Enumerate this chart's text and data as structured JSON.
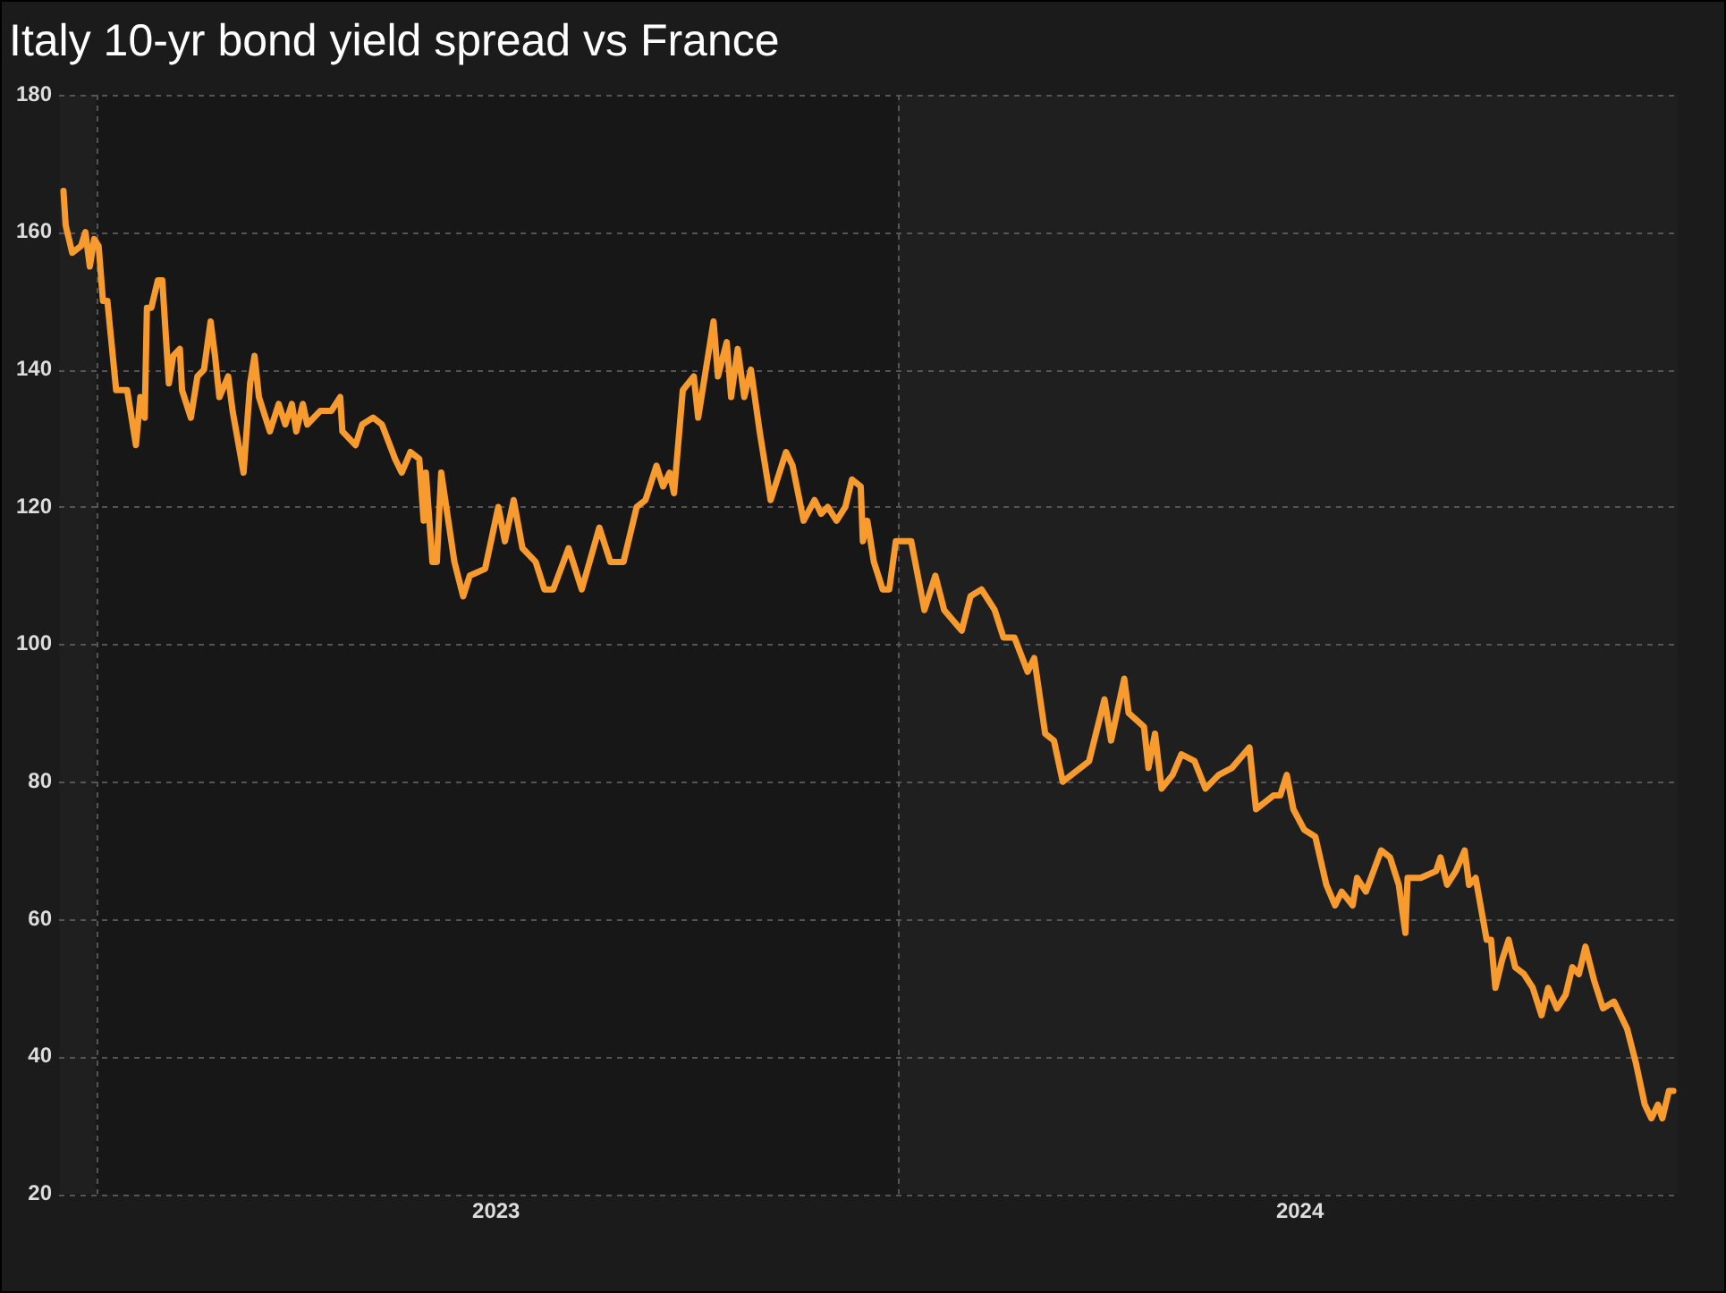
{
  "chart_data": {
    "type": "line",
    "title": "Italy 10-yr bond yield spread vs France",
    "x": [
      "2022-12-17",
      "2022-12-18",
      "2022-12-21",
      "2022-12-25",
      "2022-12-27",
      "2022-12-29",
      "2022-12-31",
      "2023-01-02",
      "2023-01-04",
      "2023-01-06",
      "2023-01-10",
      "2023-01-13",
      "2023-01-15",
      "2023-01-19",
      "2023-01-21",
      "2023-01-23",
      "2023-01-24",
      "2023-01-26",
      "2023-01-29",
      "2023-01-31",
      "2023-02-03",
      "2023-02-05",
      "2023-02-08",
      "2023-02-09",
      "2023-02-13",
      "2023-02-16",
      "2023-02-19",
      "2023-02-22",
      "2023-02-24",
      "2023-02-26",
      "2023-03-02",
      "2023-03-04",
      "2023-03-09",
      "2023-03-12",
      "2023-03-14",
      "2023-03-16",
      "2023-03-21",
      "2023-03-25",
      "2023-03-28",
      "2023-03-31",
      "2023-04-02",
      "2023-04-05",
      "2023-04-07",
      "2023-04-13",
      "2023-04-18",
      "2023-04-22",
      "2023-04-23",
      "2023-04-29",
      "2023-05-02",
      "2023-05-07",
      "2023-05-11",
      "2023-05-17",
      "2023-05-20",
      "2023-05-24",
      "2023-05-28",
      "2023-05-30",
      "2023-05-31",
      "2023-06-03",
      "2023-06-05",
      "2023-06-07",
      "2023-06-13",
      "2023-06-17",
      "2023-06-20",
      "2023-06-27",
      "2023-07-03",
      "2023-07-06",
      "2023-07-10",
      "2023-07-14",
      "2023-07-20",
      "2023-07-24",
      "2023-07-28",
      "2023-08-04",
      "2023-08-10",
      "2023-08-18",
      "2023-08-23",
      "2023-08-29",
      "2023-09-04",
      "2023-09-08",
      "2023-09-13",
      "2023-09-16",
      "2023-09-19",
      "2023-09-21",
      "2023-09-25",
      "2023-09-30",
      "2023-10-02",
      "2023-10-05",
      "2023-10-09",
      "2023-10-11",
      "2023-10-15",
      "2023-10-17",
      "2023-10-20",
      "2023-10-23",
      "2023-10-26",
      "2023-10-30",
      "2023-11-04",
      "2023-11-07",
      "2023-11-11",
      "2023-11-14",
      "2023-11-19",
      "2023-11-24",
      "2023-11-27",
      "2023-11-30",
      "2023-12-04",
      "2023-12-08",
      "2023-12-11",
      "2023-12-15",
      "2023-12-16",
      "2023-12-18",
      "2023-12-21",
      "2023-12-25",
      "2023-12-28",
      "2023-12-31",
      "2024-01-04",
      "2024-01-07",
      "2024-01-13",
      "2024-01-18",
      "2024-01-22",
      "2024-01-30",
      "2024-02-03",
      "2024-02-08",
      "2024-02-14",
      "2024-02-18",
      "2024-02-23",
      "2024-02-29",
      "2024-03-03",
      "2024-03-08",
      "2024-03-12",
      "2024-03-16",
      "2024-03-20",
      "2024-03-28",
      "2024-04-04",
      "2024-04-07",
      "2024-04-13",
      "2024-04-15",
      "2024-04-22",
      "2024-04-24",
      "2024-04-27",
      "2024-04-30",
      "2024-05-05",
      "2024-05-09",
      "2024-05-15",
      "2024-05-20",
      "2024-05-26",
      "2024-06-01",
      "2024-06-09",
      "2024-06-12",
      "2024-06-16",
      "2024-06-20",
      "2024-06-23",
      "2024-06-26",
      "2024-06-29",
      "2024-07-04",
      "2024-07-09",
      "2024-07-14",
      "2024-07-18",
      "2024-07-21",
      "2024-07-26",
      "2024-07-28",
      "2024-08-01",
      "2024-08-08",
      "2024-08-12",
      "2024-08-16",
      "2024-08-19",
      "2024-08-20",
      "2024-08-26",
      "2024-09-02",
      "2024-09-04",
      "2024-09-07",
      "2024-09-11",
      "2024-09-15",
      "2024-09-17",
      "2024-09-20",
      "2024-09-25",
      "2024-09-27",
      "2024-09-29",
      "2024-10-02",
      "2024-10-05",
      "2024-10-08",
      "2024-10-12",
      "2024-10-16",
      "2024-10-20",
      "2024-10-23",
      "2024-10-27",
      "2024-10-31",
      "2024-11-03",
      "2024-11-06",
      "2024-11-09",
      "2024-11-13",
      "2024-11-17",
      "2024-11-22",
      "2024-11-28",
      "2024-12-02",
      "2024-12-06",
      "2024-12-09",
      "2024-12-12",
      "2024-12-14",
      "2024-12-17",
      "2024-12-19"
    ],
    "series": [
      {
        "color": "#f89b2e",
        "values": [
          166,
          161,
          157,
          158,
          160,
          155,
          159,
          158,
          150,
          150,
          137,
          137,
          137,
          129,
          136,
          133,
          149,
          149,
          153,
          153,
          138,
          142,
          143,
          137,
          133,
          139,
          140,
          147,
          142,
          136,
          139,
          134,
          125,
          138,
          142,
          136,
          131,
          135,
          132,
          135,
          131,
          135,
          132,
          134,
          134,
          136,
          131,
          129,
          132,
          133,
          132,
          127,
          125,
          128,
          127,
          118,
          125,
          112,
          112,
          125,
          112,
          107,
          110,
          111,
          120,
          115,
          121,
          114,
          112,
          108,
          108,
          114,
          108,
          117,
          112,
          112,
          120,
          121,
          126,
          123,
          125,
          122,
          137,
          139,
          133,
          139,
          147,
          139,
          144,
          136,
          143,
          136,
          140,
          131,
          121,
          124,
          128,
          126,
          118,
          121,
          119,
          120,
          118,
          120,
          124,
          123,
          115,
          118,
          112,
          108,
          108,
          115,
          115,
          115,
          105,
          110,
          105,
          102,
          107,
          108,
          105,
          101,
          101,
          96,
          98,
          87,
          86,
          80,
          81,
          83,
          92,
          86,
          95,
          90,
          88,
          82,
          87,
          79,
          81,
          84,
          83,
          79,
          81,
          82,
          85,
          76,
          77,
          78,
          78,
          81,
          76,
          73,
          72,
          65,
          62,
          64,
          62,
          66,
          64,
          70,
          69,
          65,
          58,
          66,
          66,
          67,
          69,
          65,
          67,
          70,
          65,
          66,
          57,
          57,
          50,
          54,
          57,
          53,
          52,
          50,
          46,
          50,
          47,
          49,
          53,
          52,
          56,
          51,
          47,
          48,
          44,
          39,
          33,
          31,
          33,
          31,
          35,
          35
        ]
      }
    ],
    "xlim": [
      "2022-12-15",
      "2024-12-21"
    ],
    "xticks": [
      {
        "value": "2023-01-01",
        "label": null
      },
      {
        "value": "2023-07-02",
        "label": "2023"
      },
      {
        "value": "2024-01-01",
        "label": null
      },
      {
        "value": "2024-07-02",
        "label": "2024"
      }
    ],
    "ylim": [
      20,
      180
    ],
    "yticks": [
      20,
      40,
      60,
      80,
      100,
      120,
      140,
      160,
      180
    ],
    "grid": true,
    "marker": "none",
    "line_style": "solid",
    "bands": [
      {
        "axis": "x",
        "from": "2022-12-15",
        "to": "2023-01-01",
        "color": "#1f1f1f"
      },
      {
        "axis": "x",
        "from": "2024-01-01",
        "to": "2024-12-21",
        "color": "#1f1f1f"
      }
    ]
  }
}
